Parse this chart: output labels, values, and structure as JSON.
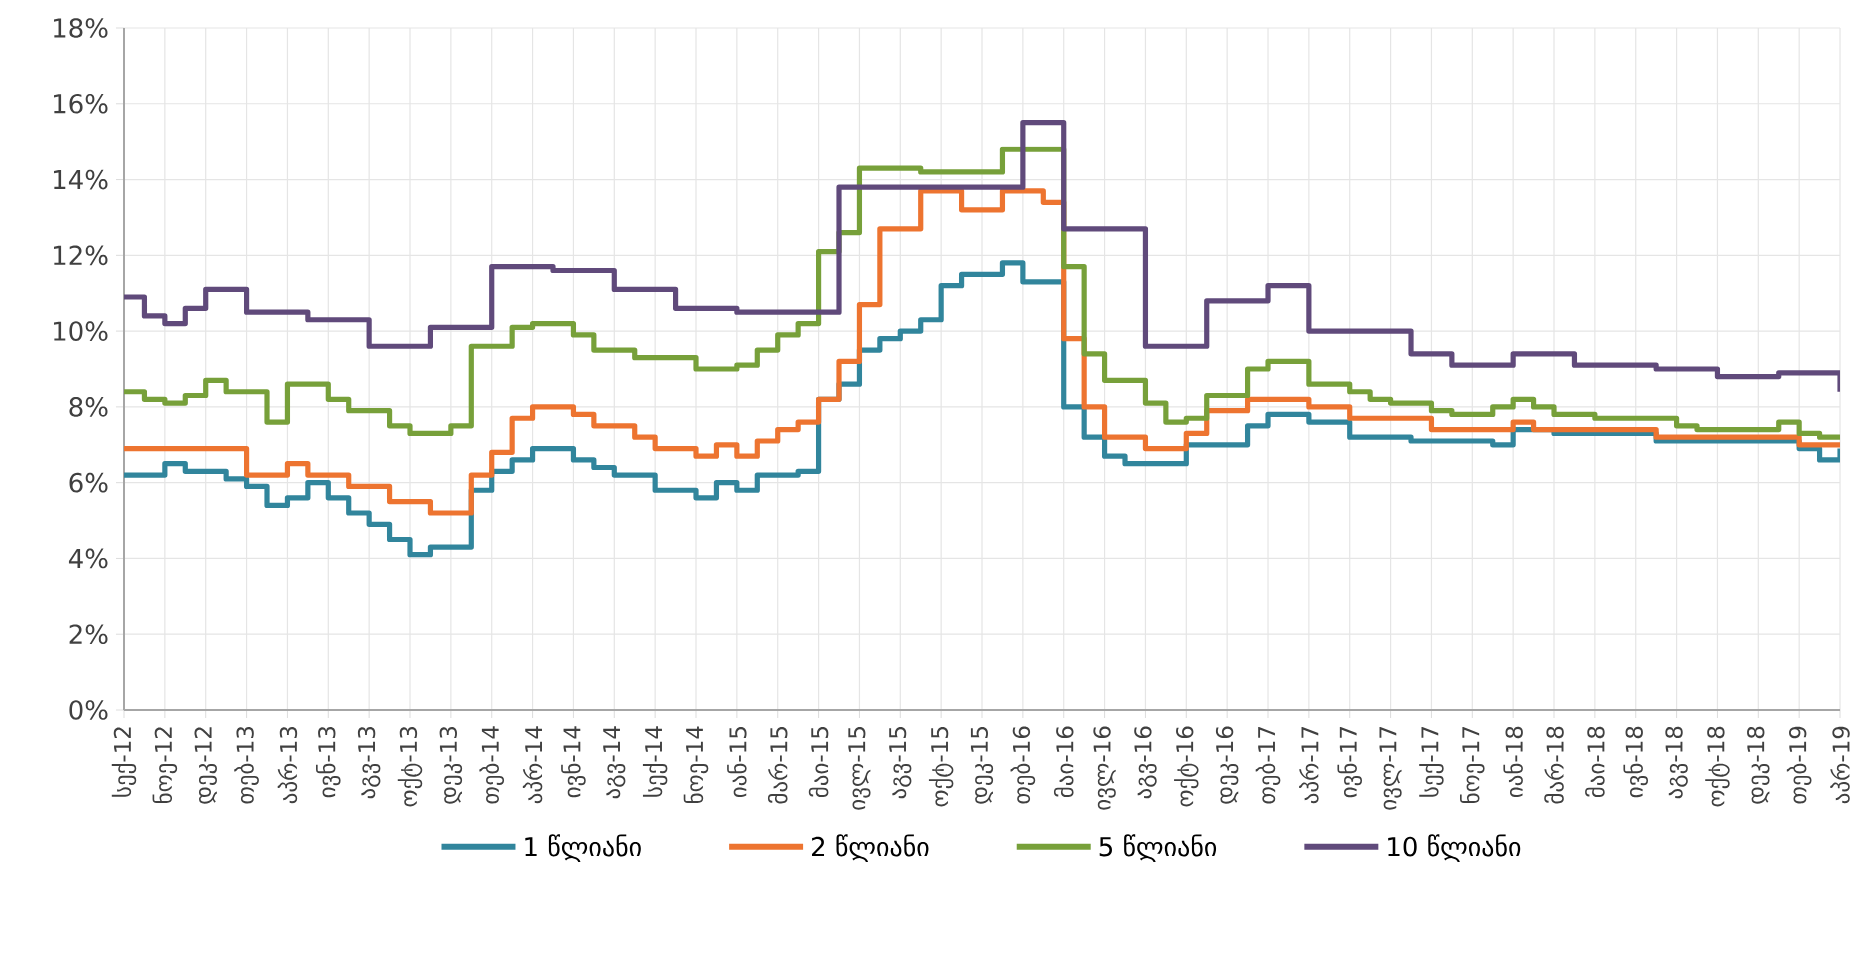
{
  "chart_data": {
    "type": "step",
    "categories": [
      "სექ-12",
      null,
      "ნოე-12",
      null,
      "დეკ-12",
      null,
      "თებ-13",
      null,
      "აპრ-13",
      null,
      "ივნ-13",
      null,
      "აგვ-13",
      null,
      "ოქტ-13",
      null,
      "დეკ-13",
      null,
      "თებ-14",
      null,
      "აპრ-14",
      null,
      "ივნ-14",
      null,
      "აგვ-14",
      null,
      "სექ-14",
      null,
      "ნოე-14",
      null,
      "იან-15",
      null,
      "მარ-15",
      null,
      "მაი-15",
      null,
      "ივლ-15",
      null,
      "აგვ-15",
      null,
      "ოქტ-15",
      null,
      "დეკ-15",
      null,
      "თებ-16",
      null,
      "მაი-16",
      null,
      "ივლ-16",
      null,
      "აგვ-16",
      null,
      "ოქტ-16",
      null,
      "დეკ-16",
      null,
      "თებ-17",
      null,
      "აპრ-17",
      null,
      "ივნ-17",
      null,
      "ივლ-17",
      null,
      "სექ-17",
      null,
      "ნოე-17",
      null,
      "იან-18",
      null,
      "მარ-18",
      null,
      "მაი-18",
      null,
      "ივნ-18",
      null,
      "აგვ-18",
      null,
      "ოქტ-18",
      null,
      "დეკ-18",
      null,
      "თებ-19",
      null,
      "აპრ-19"
    ],
    "ylim": [
      0,
      18
    ],
    "yticks": [
      {
        "value": 0,
        "label": "0%"
      },
      {
        "value": 2,
        "label": "2%"
      },
      {
        "value": 4,
        "label": "4%"
      },
      {
        "value": 6,
        "label": "6%"
      },
      {
        "value": 8,
        "label": "8%"
      },
      {
        "value": 10,
        "label": "10%"
      },
      {
        "value": 12,
        "label": "12%"
      },
      {
        "value": 14,
        "label": "14%"
      },
      {
        "value": 16,
        "label": "16%"
      },
      {
        "value": 18,
        "label": "18%"
      }
    ],
    "grid": true,
    "legend": "bottom",
    "marker": "none",
    "line_style": "solid",
    "series": [
      {
        "name": "1 წლიანი",
        "color": "#31859c",
        "values": [
          6.2,
          6.2,
          6.5,
          6.3,
          6.3,
          6.1,
          5.9,
          5.4,
          5.6,
          6.0,
          5.6,
          5.2,
          4.9,
          4.5,
          4.1,
          4.3,
          4.3,
          5.8,
          6.3,
          6.6,
          6.9,
          6.9,
          6.6,
          6.4,
          6.2,
          6.2,
          5.8,
          5.8,
          5.6,
          6.0,
          5.8,
          6.2,
          6.2,
          6.3,
          8.2,
          8.6,
          9.5,
          9.8,
          10.0,
          10.3,
          11.2,
          11.5,
          11.5,
          11.8,
          11.3,
          11.3,
          8.0,
          7.2,
          6.7,
          6.5,
          6.5,
          6.5,
          7.0,
          7.0,
          7.0,
          7.5,
          7.8,
          7.8,
          7.6,
          7.6,
          7.2,
          7.2,
          7.2,
          7.1,
          7.1,
          7.1,
          7.1,
          7.0,
          7.4,
          7.4,
          7.3,
          7.3,
          7.3,
          7.3,
          7.3,
          7.1,
          7.1,
          7.1,
          7.1,
          7.1,
          7.1,
          7.1,
          6.9,
          6.6,
          6.9
        ]
      },
      {
        "name": "2 წლიანი",
        "color": "#ed7430",
        "values": [
          6.9,
          6.9,
          6.9,
          6.9,
          6.9,
          6.9,
          6.2,
          6.2,
          6.5,
          6.2,
          6.2,
          5.9,
          5.9,
          5.5,
          5.5,
          5.2,
          5.2,
          6.2,
          6.8,
          7.7,
          8.0,
          8.0,
          7.8,
          7.5,
          7.5,
          7.2,
          6.9,
          6.9,
          6.7,
          7.0,
          6.7,
          7.1,
          7.4,
          7.6,
          8.2,
          9.2,
          10.7,
          12.7,
          12.7,
          13.7,
          13.7,
          13.2,
          13.2,
          13.7,
          13.7,
          13.4,
          9.8,
          8.0,
          7.2,
          7.2,
          6.9,
          6.9,
          7.3,
          7.9,
          7.9,
          8.2,
          8.2,
          8.2,
          8.0,
          8.0,
          7.7,
          7.7,
          7.7,
          7.7,
          7.4,
          7.4,
          7.4,
          7.4,
          7.6,
          7.4,
          7.4,
          7.4,
          7.4,
          7.4,
          7.4,
          7.2,
          7.2,
          7.2,
          7.2,
          7.2,
          7.2,
          7.2,
          7.0,
          7.0,
          7.0
        ]
      },
      {
        "name": "5 წლიანი",
        "color": "#77a03a",
        "values": [
          8.4,
          8.2,
          8.1,
          8.3,
          8.7,
          8.4,
          8.4,
          7.6,
          8.6,
          8.6,
          8.2,
          7.9,
          7.9,
          7.5,
          7.3,
          7.3,
          7.5,
          9.6,
          9.6,
          10.1,
          10.2,
          10.2,
          9.9,
          9.5,
          9.5,
          9.3,
          9.3,
          9.3,
          9.0,
          9.0,
          9.1,
          9.5,
          9.9,
          10.2,
          12.1,
          12.6,
          14.3,
          14.3,
          14.3,
          14.2,
          14.2,
          14.2,
          14.2,
          14.8,
          14.8,
          14.8,
          11.7,
          9.4,
          8.7,
          8.7,
          8.1,
          7.6,
          7.7,
          8.3,
          8.3,
          9.0,
          9.2,
          9.2,
          8.6,
          8.6,
          8.4,
          8.2,
          8.1,
          8.1,
          7.9,
          7.8,
          7.8,
          8.0,
          8.2,
          8.0,
          7.8,
          7.8,
          7.7,
          7.7,
          7.7,
          7.7,
          7.5,
          7.4,
          7.4,
          7.4,
          7.4,
          7.6,
          7.3,
          7.2,
          7.2
        ]
      },
      {
        "name": "10 წლიანი",
        "color": "#604a7b",
        "values": [
          10.9,
          10.4,
          10.2,
          10.6,
          11.1,
          11.1,
          10.5,
          10.5,
          10.5,
          10.3,
          10.3,
          10.3,
          9.6,
          9.6,
          9.6,
          10.1,
          10.1,
          10.1,
          11.7,
          11.7,
          11.7,
          11.6,
          11.6,
          11.6,
          11.1,
          11.1,
          11.1,
          10.6,
          10.6,
          10.6,
          10.5,
          10.5,
          10.5,
          10.5,
          10.5,
          13.8,
          13.8,
          13.8,
          13.8,
          13.8,
          13.8,
          13.8,
          13.8,
          13.8,
          15.5,
          15.5,
          12.7,
          12.7,
          12.7,
          12.7,
          9.6,
          9.6,
          9.6,
          10.8,
          10.8,
          10.8,
          11.2,
          11.2,
          10.0,
          10.0,
          10.0,
          10.0,
          10.0,
          9.4,
          9.4,
          9.1,
          9.1,
          9.1,
          9.4,
          9.4,
          9.4,
          9.1,
          9.1,
          9.1,
          9.1,
          9.0,
          9.0,
          9.0,
          8.8,
          8.8,
          8.8,
          8.9,
          8.9,
          8.9,
          8.4
        ]
      }
    ]
  }
}
